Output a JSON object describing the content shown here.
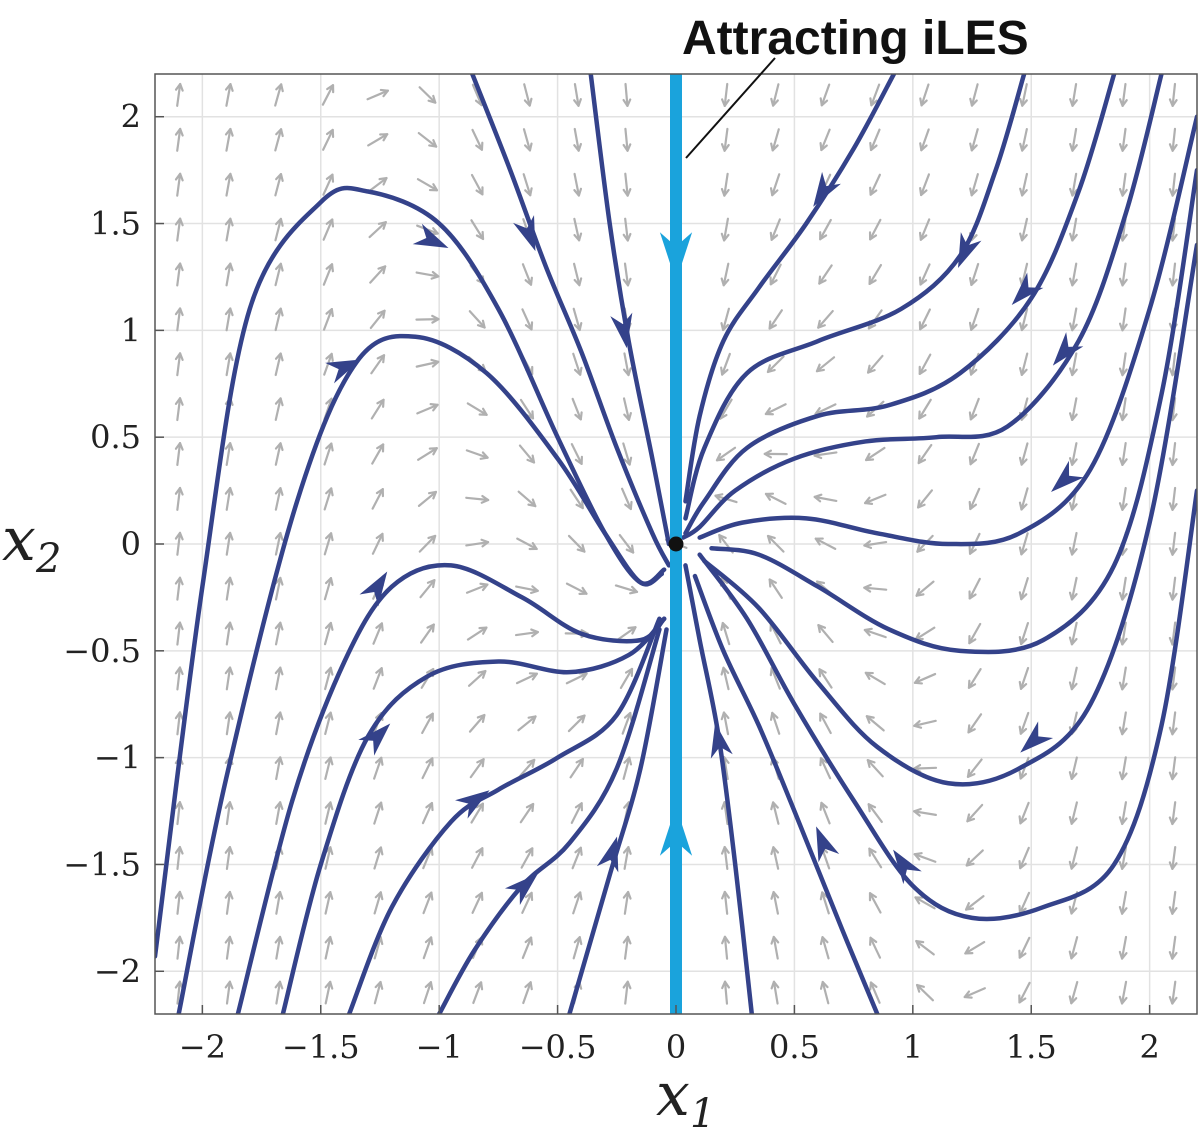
{
  "chart_data": {
    "type": "phase-portrait",
    "xlabel": "x",
    "xlabel_sub": "1",
    "ylabel": "x",
    "ylabel_sub": "2",
    "xlim": [
      -2.2,
      2.2
    ],
    "ylim": [
      -2.2,
      2.2
    ],
    "xticks": [
      -2,
      -1.5,
      -1,
      -0.5,
      0,
      0.5,
      1,
      1.5,
      2
    ],
    "xtick_labels": [
      "−2",
      "−1.5",
      "−1",
      "−0.5",
      "0",
      "0.5",
      "1",
      "1.5",
      "2"
    ],
    "yticks": [
      2,
      1.5,
      1,
      0.5,
      0,
      -0.5,
      -1,
      -1.5,
      -2
    ],
    "ytick_labels": [
      "2",
      "1.5",
      "1",
      "0.5",
      "0",
      "−0.5",
      "−1",
      "−1.5",
      "−2"
    ],
    "grid": true,
    "annotation": {
      "text": "Attracting iLES",
      "points_to": [
        0.05,
        1.8
      ]
    },
    "equilibrium": {
      "x": 0,
      "y": 0
    },
    "iles": {
      "x": 0,
      "y_range": [
        -2.2,
        2.2
      ],
      "arrows": [
        {
          "y": 1.35,
          "dir": "down"
        },
        {
          "y": -1.35,
          "dir": "up"
        }
      ]
    },
    "colors": {
      "streamline": "#34428a",
      "iles": "#1aa3dc",
      "quiver": "#b0b0b0",
      "grid": "#e2e2e2",
      "equilibrium": "#111111"
    },
    "streamlines": [
      {
        "points": [
          [
            -2.2,
            -1.93
          ],
          [
            -2.0,
            -0.2
          ],
          [
            -1.8,
            1.1
          ],
          [
            -1.5,
            1.6
          ],
          [
            -1.3,
            1.65
          ],
          [
            -1.0,
            1.5
          ],
          [
            -0.75,
            1.1
          ],
          [
            -0.5,
            0.5
          ],
          [
            -0.3,
            0.05
          ],
          [
            -0.15,
            -0.18
          ],
          [
            -0.05,
            -0.12
          ]
        ],
        "arrows": [
          [
            -1.03,
            1.42
          ]
        ]
      },
      {
        "points": [
          [
            -2.1,
            -2.2
          ],
          [
            -1.9,
            -1.1
          ],
          [
            -1.6,
            0.2
          ],
          [
            -1.35,
            0.85
          ],
          [
            -1.1,
            0.97
          ],
          [
            -0.8,
            0.8
          ],
          [
            -0.5,
            0.4
          ],
          [
            -0.3,
            0.05
          ],
          [
            -0.15,
            -0.18
          ],
          [
            -0.06,
            -0.14
          ]
        ],
        "arrows": [
          [
            -1.4,
            0.83
          ]
        ]
      },
      {
        "points": [
          [
            -1.85,
            -2.2
          ],
          [
            -1.62,
            -1.2
          ],
          [
            -1.4,
            -0.55
          ],
          [
            -1.2,
            -0.2
          ],
          [
            -0.95,
            -0.1
          ],
          [
            -0.65,
            -0.25
          ],
          [
            -0.4,
            -0.42
          ],
          [
            -0.15,
            -0.45
          ],
          [
            -0.05,
            -0.35
          ]
        ],
        "arrows": [
          [
            -1.26,
            -0.2
          ]
        ]
      },
      {
        "points": [
          [
            -1.66,
            -2.2
          ],
          [
            -1.5,
            -1.5
          ],
          [
            -1.3,
            -0.9
          ],
          [
            -1.05,
            -0.62
          ],
          [
            -0.75,
            -0.55
          ],
          [
            -0.45,
            -0.6
          ],
          [
            -0.2,
            -0.52
          ],
          [
            -0.05,
            -0.35
          ]
        ],
        "arrows": [
          [
            -1.26,
            -0.9
          ]
        ]
      },
      {
        "points": [
          [
            -1.38,
            -2.2
          ],
          [
            -1.2,
            -1.7
          ],
          [
            -0.95,
            -1.3
          ],
          [
            -0.75,
            -1.15
          ],
          [
            -0.5,
            -1.0
          ],
          [
            -0.25,
            -0.8
          ],
          [
            -0.07,
            -0.35
          ]
        ],
        "arrows": [
          [
            -0.85,
            -1.2
          ]
        ]
      },
      {
        "points": [
          [
            -1.0,
            -2.2
          ],
          [
            -0.85,
            -1.9
          ],
          [
            -0.65,
            -1.6
          ],
          [
            -0.45,
            -1.4
          ],
          [
            -0.25,
            -1.05
          ],
          [
            -0.07,
            -0.4
          ]
        ],
        "arrows": [
          [
            -0.64,
            -1.6
          ]
        ]
      },
      {
        "points": [
          [
            -0.45,
            -2.2
          ],
          [
            -0.28,
            -1.55
          ],
          [
            -0.15,
            -1.05
          ],
          [
            -0.04,
            -0.4
          ]
        ],
        "arrows": [
          [
            -0.27,
            -1.45
          ]
        ]
      },
      {
        "points": [
          [
            -0.86,
            2.2
          ],
          [
            -0.7,
            1.75
          ],
          [
            -0.55,
            1.3
          ],
          [
            -0.4,
            0.9
          ],
          [
            -0.25,
            0.45
          ],
          [
            -0.1,
            0.05
          ],
          [
            -0.03,
            -0.1
          ]
        ],
        "arrows": [
          [
            -0.62,
            1.45
          ]
        ]
      },
      {
        "points": [
          [
            -0.36,
            2.2
          ],
          [
            -0.28,
            1.5
          ],
          [
            -0.2,
            0.95
          ],
          [
            -0.1,
            0.4
          ],
          [
            -0.03,
            0.0
          ]
        ],
        "arrows": [
          [
            -0.22,
            1.0
          ]
        ]
      },
      {
        "points": [
          [
            0.92,
            2.2
          ],
          [
            0.75,
            1.85
          ],
          [
            0.55,
            1.5
          ],
          [
            0.35,
            1.2
          ],
          [
            0.2,
            0.95
          ],
          [
            0.1,
            0.6
          ],
          [
            0.04,
            0.2
          ]
        ],
        "arrows": [
          [
            0.62,
            1.65
          ]
        ]
      },
      {
        "points": [
          [
            1.47,
            2.2
          ],
          [
            1.35,
            1.75
          ],
          [
            1.2,
            1.35
          ],
          [
            0.95,
            1.1
          ],
          [
            0.6,
            0.95
          ],
          [
            0.3,
            0.8
          ],
          [
            0.12,
            0.45
          ],
          [
            0.04,
            0.12
          ]
        ],
        "arrows": [
          [
            1.22,
            1.37
          ]
        ]
      },
      {
        "points": [
          [
            1.85,
            2.2
          ],
          [
            1.7,
            1.65
          ],
          [
            1.5,
            1.15
          ],
          [
            1.2,
            0.8
          ],
          [
            0.9,
            0.65
          ],
          [
            0.6,
            0.6
          ],
          [
            0.3,
            0.45
          ],
          [
            0.12,
            0.2
          ],
          [
            0.04,
            0.05
          ]
        ],
        "arrows": [
          [
            1.47,
            1.18
          ]
        ]
      },
      {
        "points": [
          [
            2.05,
            2.2
          ],
          [
            1.9,
            1.55
          ],
          [
            1.7,
            0.95
          ],
          [
            1.4,
            0.55
          ],
          [
            1.1,
            0.5
          ],
          [
            0.8,
            0.48
          ],
          [
            0.5,
            0.4
          ],
          [
            0.25,
            0.25
          ],
          [
            0.1,
            0.08
          ],
          [
            0.03,
            0.03
          ]
        ],
        "arrows": [
          [
            1.64,
            0.9
          ]
        ]
      },
      {
        "points": [
          [
            2.2,
            2.0
          ],
          [
            2.0,
            1.1
          ],
          [
            1.75,
            0.35
          ],
          [
            1.45,
            0.05
          ],
          [
            1.15,
            0.0
          ],
          [
            0.85,
            0.05
          ],
          [
            0.55,
            0.12
          ],
          [
            0.28,
            0.1
          ],
          [
            0.1,
            0.03
          ]
        ],
        "arrows": [
          [
            1.64,
            0.3
          ]
        ]
      },
      {
        "points": [
          [
            2.2,
            1.75
          ],
          [
            2.05,
            0.7
          ],
          [
            1.85,
            -0.1
          ],
          [
            1.55,
            -0.45
          ],
          [
            1.2,
            -0.5
          ],
          [
            0.9,
            -0.4
          ],
          [
            0.6,
            -0.2
          ],
          [
            0.35,
            -0.05
          ],
          [
            0.15,
            -0.02
          ]
        ],
        "arrows": []
      },
      {
        "points": [
          [
            2.2,
            1.4
          ],
          [
            2.0,
            0.1
          ],
          [
            1.75,
            -0.75
          ],
          [
            1.45,
            -1.05
          ],
          [
            1.15,
            -1.12
          ],
          [
            0.85,
            -0.95
          ],
          [
            0.6,
            -0.65
          ],
          [
            0.35,
            -0.3
          ],
          [
            0.12,
            -0.08
          ]
        ],
        "arrows": [
          [
            1.51,
            -0.92
          ]
        ]
      },
      {
        "points": [
          [
            2.2,
            0.25
          ],
          [
            2.05,
            -0.85
          ],
          [
            1.85,
            -1.5
          ],
          [
            1.55,
            -1.7
          ],
          [
            1.25,
            -1.75
          ],
          [
            1.0,
            -1.6
          ],
          [
            0.75,
            -1.2
          ],
          [
            0.5,
            -0.75
          ],
          [
            0.3,
            -0.35
          ],
          [
            0.1,
            -0.05
          ]
        ],
        "arrows": [
          [
            0.96,
            -1.5
          ]
        ]
      },
      {
        "points": [
          [
            0.85,
            -2.2
          ],
          [
            0.7,
            -1.8
          ],
          [
            0.5,
            -1.25
          ],
          [
            0.35,
            -0.85
          ],
          [
            0.2,
            -0.5
          ],
          [
            0.08,
            -0.15
          ]
        ],
        "arrows": [
          [
            0.62,
            -1.4
          ]
        ]
      },
      {
        "points": [
          [
            0.32,
            -2.2
          ],
          [
            0.25,
            -1.5
          ],
          [
            0.18,
            -0.9
          ],
          [
            0.1,
            -0.45
          ],
          [
            0.04,
            -0.1
          ]
        ],
        "arrows": [
          [
            0.18,
            -0.92
          ]
        ]
      }
    ]
  }
}
